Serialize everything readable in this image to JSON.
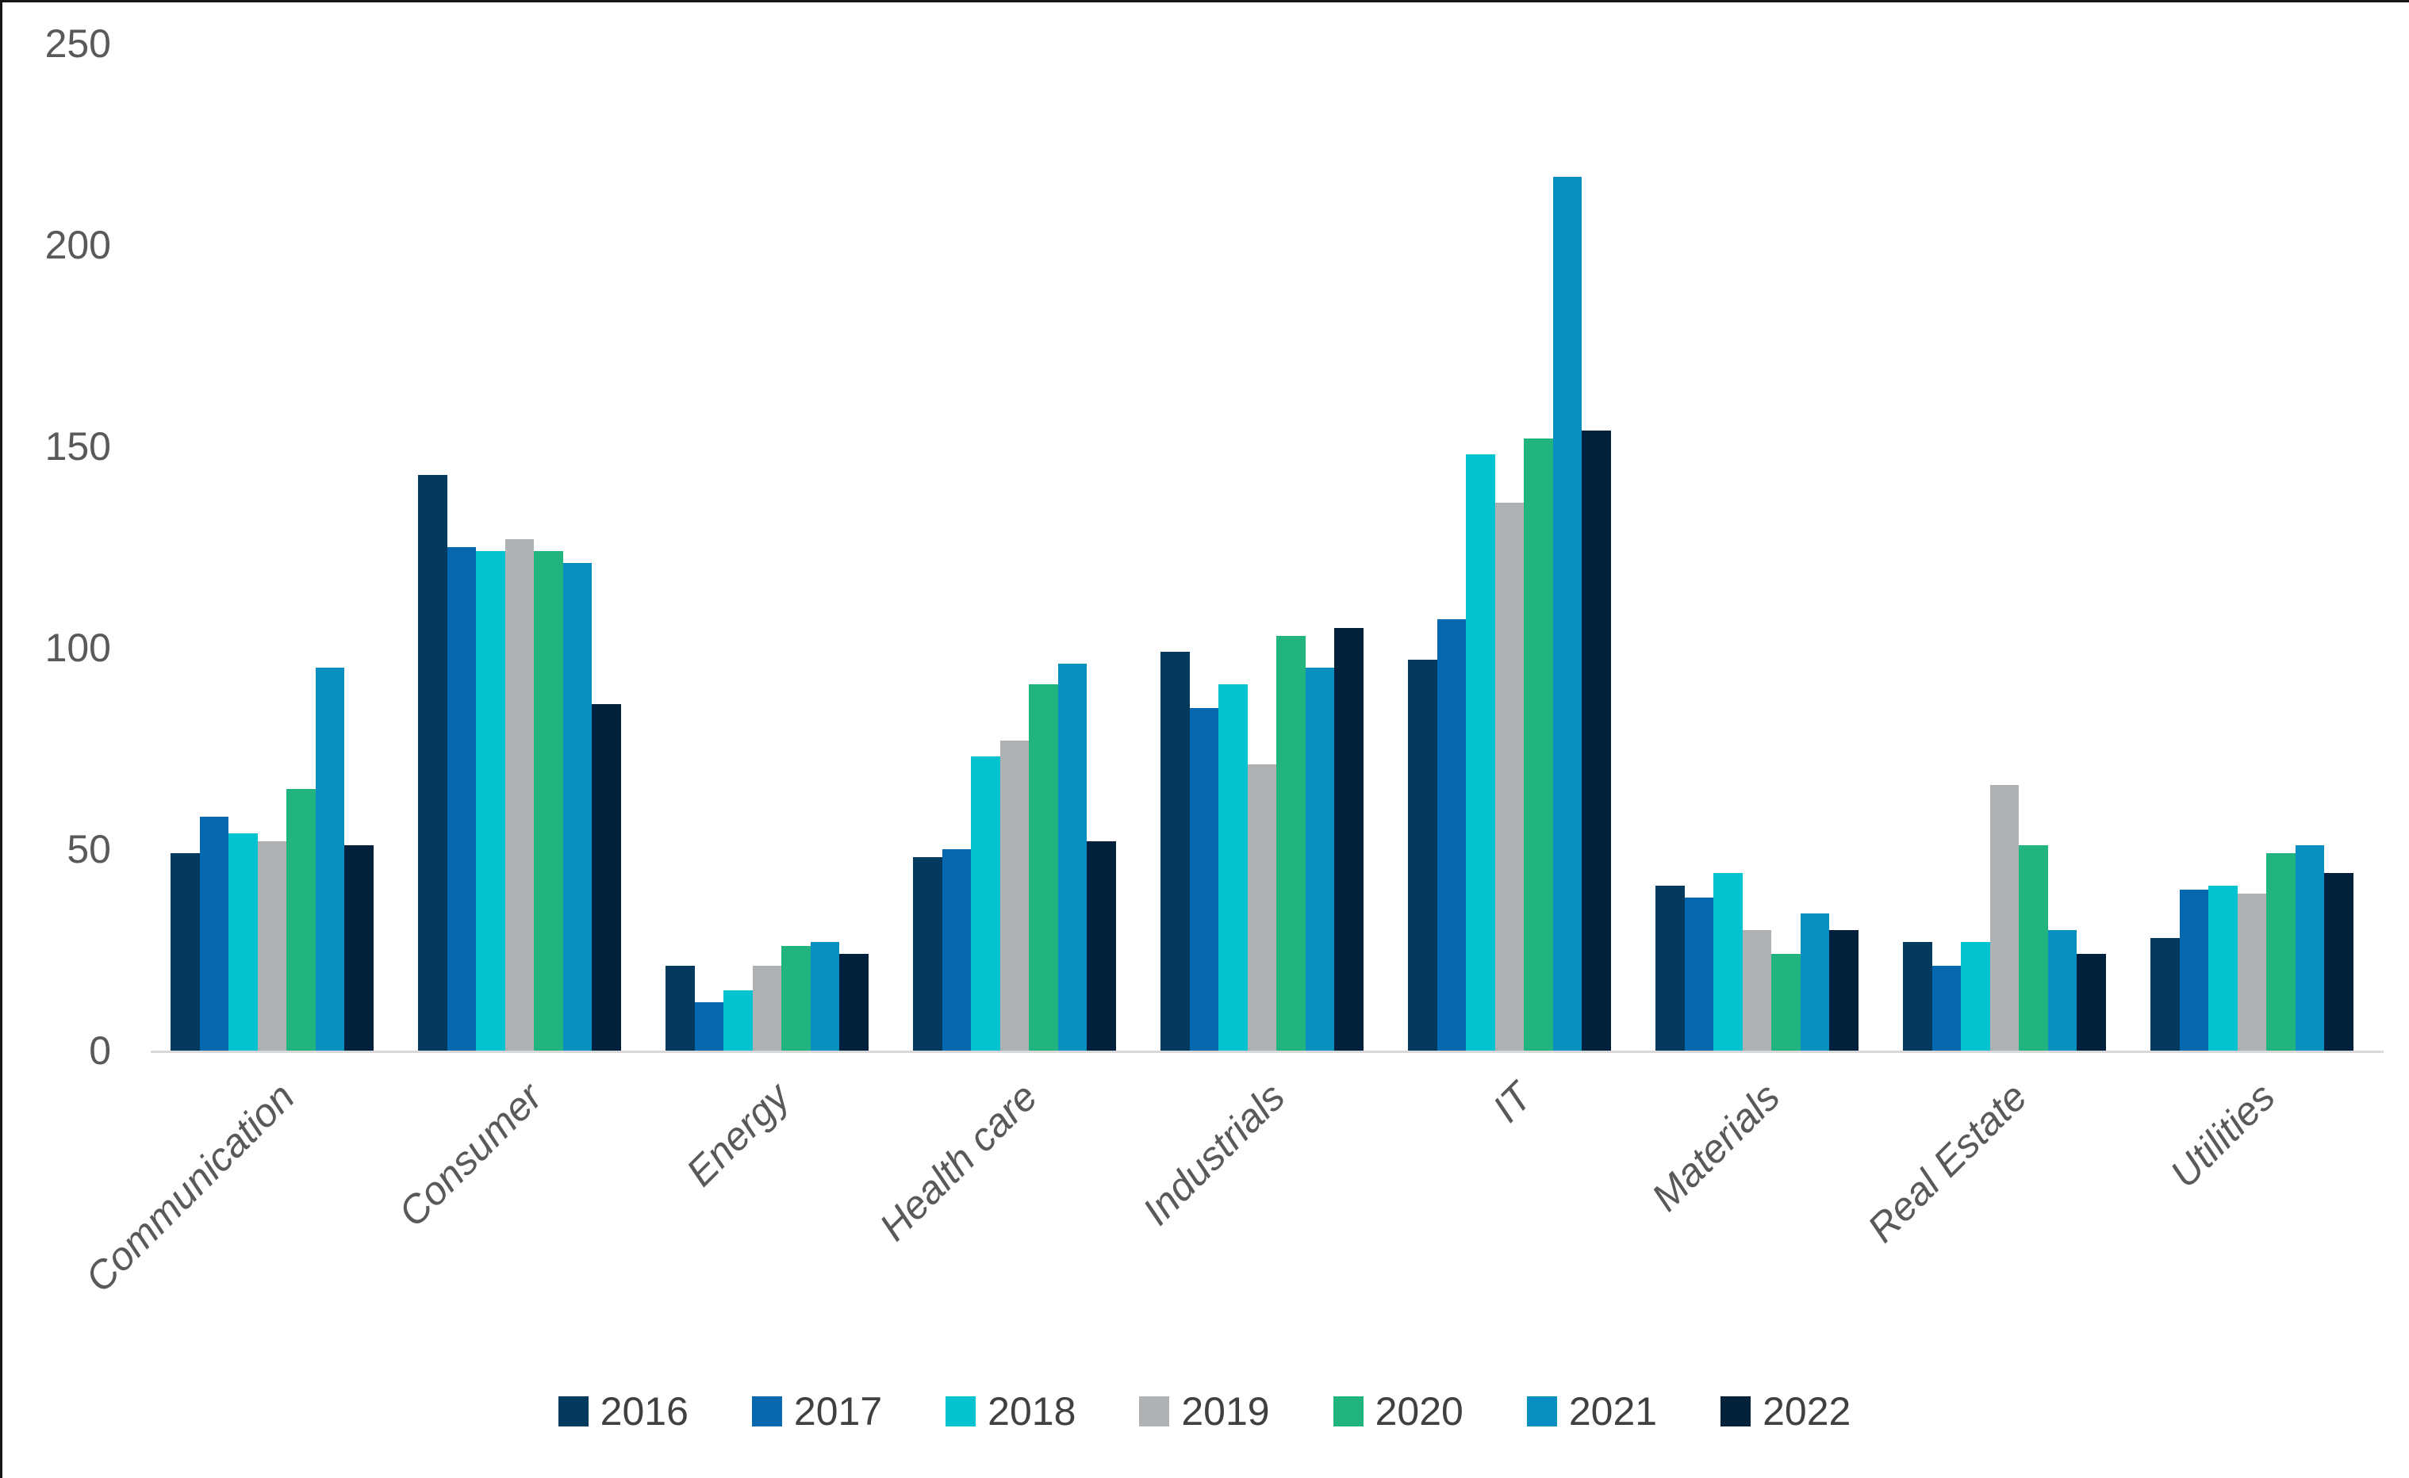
{
  "chart_data": {
    "type": "bar",
    "title": "",
    "xlabel": "",
    "ylabel": "",
    "categories": [
      "Communication",
      "Consumer",
      "Energy",
      "Health care",
      "Industrials",
      "IT",
      "Materials",
      "Real Estate",
      "Utilities"
    ],
    "series": [
      {
        "name": "2016",
        "color": "#053A5F",
        "values": [
          49,
          143,
          21,
          48,
          99,
          97,
          41,
          27,
          28
        ]
      },
      {
        "name": "2017",
        "color": "#0668AF",
        "values": [
          58,
          125,
          12,
          50,
          85,
          107,
          38,
          21,
          40
        ]
      },
      {
        "name": "2018",
        "color": "#04C3D1",
        "values": [
          54,
          124,
          15,
          73,
          91,
          148,
          44,
          27,
          41
        ]
      },
      {
        "name": "2019",
        "color": "#AFB2B5",
        "values": [
          52,
          127,
          21,
          77,
          71,
          136,
          30,
          66,
          39
        ]
      },
      {
        "name": "2020",
        "color": "#21B47E",
        "values": [
          65,
          124,
          26,
          91,
          103,
          152,
          24,
          51,
          49
        ]
      },
      {
        "name": "2021",
        "color": "#078FC1",
        "values": [
          95,
          121,
          27,
          96,
          95,
          217,
          34,
          30,
          51
        ]
      },
      {
        "name": "2022",
        "color": "#03203D",
        "values": [
          51,
          86,
          24,
          52,
          105,
          154,
          30,
          24,
          44
        ]
      }
    ],
    "y_axis": {
      "min": 0,
      "max": 250,
      "step": 50,
      "tick_labels": [
        "0",
        "50",
        "100",
        "150",
        "200",
        "250"
      ]
    },
    "grid": false,
    "legend_position": "bottom"
  },
  "colors": {
    "background": "#FFFFFF",
    "axis_text": "#595959",
    "category_text": "#595959",
    "legend_text": "#404040",
    "axis_line": "#D9D9D9",
    "frame_edge": "#161616"
  }
}
